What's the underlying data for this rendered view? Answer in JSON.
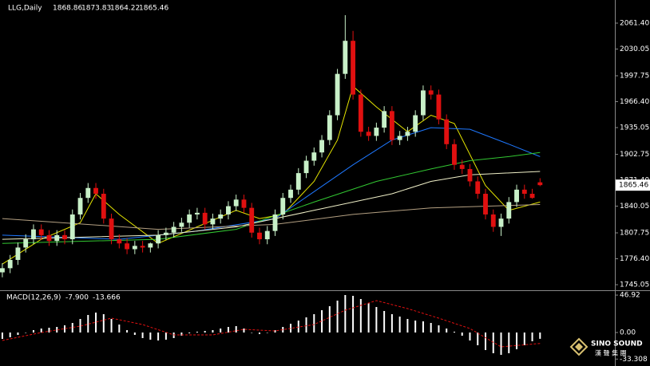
{
  "chart_data": [
    {
      "type": "candlestick",
      "title": "LLG,Daily",
      "up_color": "#c8f0c8",
      "down_color": "#e01010",
      "open": [
        1760,
        1765,
        1775,
        1790,
        1800,
        1812,
        1805,
        1798,
        1805,
        1800,
        1830,
        1850,
        1862,
        1855,
        1825,
        1800,
        1795,
        1788,
        1792,
        1790,
        1795,
        1805,
        1808,
        1815,
        1820,
        1830,
        1832,
        1818,
        1825,
        1830,
        1840,
        1848,
        1838,
        1808,
        1800,
        1810,
        1830,
        1850,
        1860,
        1880,
        1895,
        1905,
        1920,
        1950,
        2000,
        2040,
        1975,
        1930,
        1925,
        1935,
        1955,
        1920,
        1925,
        1930,
        1950,
        1980,
        1975,
        1945,
        1915,
        1890,
        1885,
        1870,
        1855,
        1830,
        1815,
        1825,
        1845,
        1860,
        1855,
        1868.86
      ],
      "high": [
        1771,
        1781,
        1796,
        1806,
        1818,
        1818,
        1811,
        1811,
        1811,
        1836,
        1856,
        1868,
        1868,
        1861,
        1831,
        1806,
        1801,
        1798,
        1798,
        1796,
        1811,
        1814,
        1821,
        1826,
        1836,
        1838,
        1838,
        1831,
        1836,
        1846,
        1854,
        1854,
        1844,
        1814,
        1816,
        1836,
        1856,
        1866,
        1886,
        1901,
        1911,
        1926,
        1956,
        2006,
        2071,
        2052,
        1981,
        1936,
        1941,
        1961,
        1961,
        1931,
        1936,
        1956,
        1986,
        1986,
        1981,
        1951,
        1921,
        1896,
        1891,
        1876,
        1861,
        1836,
        1831,
        1851,
        1866,
        1866,
        1861,
        1873.83
      ],
      "low": [
        1754,
        1759,
        1769,
        1784,
        1794,
        1799,
        1792,
        1792,
        1794,
        1794,
        1824,
        1844,
        1849,
        1819,
        1794,
        1789,
        1782,
        1782,
        1784,
        1784,
        1789,
        1799,
        1802,
        1809,
        1814,
        1824,
        1812,
        1812,
        1819,
        1824,
        1834,
        1832,
        1802,
        1794,
        1794,
        1804,
        1824,
        1844,
        1854,
        1874,
        1889,
        1899,
        1914,
        1944,
        1994,
        1969,
        1924,
        1919,
        1919,
        1929,
        1914,
        1914,
        1919,
        1924,
        1944,
        1969,
        1939,
        1909,
        1884,
        1879,
        1864,
        1849,
        1824,
        1809,
        1804,
        1819,
        1839,
        1849,
        1849,
        1864.22
      ],
      "close": [
        1765,
        1775,
        1790,
        1800,
        1812,
        1805,
        1798,
        1805,
        1800,
        1830,
        1850,
        1862,
        1855,
        1825,
        1800,
        1795,
        1788,
        1792,
        1790,
        1795,
        1805,
        1808,
        1815,
        1820,
        1830,
        1832,
        1818,
        1825,
        1830,
        1840,
        1848,
        1838,
        1808,
        1800,
        1810,
        1830,
        1850,
        1860,
        1880,
        1895,
        1905,
        1920,
        1950,
        2000,
        2040,
        1975,
        1930,
        1925,
        1935,
        1955,
        1920,
        1925,
        1930,
        1950,
        1980,
        1975,
        1945,
        1915,
        1890,
        1885,
        1870,
        1855,
        1830,
        1815,
        1825,
        1845,
        1860,
        1855,
        1850,
        1865.46
      ],
      "overlays": [
        {
          "color": "#e6e600",
          "x": [
            0,
            5,
            10,
            12,
            15,
            20,
            25,
            30,
            33,
            36,
            40,
            43,
            45,
            48,
            52,
            55,
            58,
            62,
            65,
            69
          ],
          "values": [
            1770,
            1800,
            1820,
            1855,
            1830,
            1795,
            1815,
            1835,
            1825,
            1830,
            1870,
            1920,
            1985,
            1960,
            1930,
            1950,
            1940,
            1865,
            1835,
            1845
          ]
        },
        {
          "color": "#1e78ff",
          "x": [
            0,
            15,
            25,
            35,
            45,
            50,
            55,
            60,
            65,
            69
          ],
          "values": [
            1805,
            1800,
            1810,
            1825,
            1890,
            1920,
            1935,
            1933,
            1915,
            1900
          ]
        },
        {
          "color": "#32c832",
          "x": [
            0,
            20,
            30,
            40,
            48,
            55,
            60,
            65,
            69
          ],
          "values": [
            1795,
            1800,
            1812,
            1845,
            1870,
            1885,
            1895,
            1900,
            1905
          ]
        },
        {
          "color": "#f0f0c8",
          "x": [
            0,
            20,
            30,
            40,
            50,
            55,
            60,
            69
          ],
          "values": [
            1800,
            1805,
            1815,
            1835,
            1855,
            1870,
            1878,
            1882
          ]
        },
        {
          "color": "#b4a082",
          "x": [
            0,
            20,
            35,
            45,
            55,
            62,
            69
          ],
          "values": [
            1825,
            1812,
            1818,
            1830,
            1838,
            1840,
            1842
          ]
        }
      ],
      "xlim": [
        -0.3,
        78.6
      ],
      "ylim": [
        1739.3,
        2085.5
      ],
      "yticks": [
        {
          "value": 2061.4,
          "label": "2061.40"
        },
        2030.05,
        1997.75,
        {
          "value": 1966.4,
          "label": "1966.40"
        },
        1935.05,
        1902.75,
        {
          "value": 1871.4,
          "label": "1871.40"
        },
        1840.05,
        1807.75,
        {
          "value": 1776.4,
          "label": "1776.40"
        },
        1745.05
      ]
    },
    {
      "type": "macd",
      "title": "MACD(12,26,9)",
      "title_values": [
        "-7.900",
        "-13.666"
      ],
      "histogram_color": "#ffffff",
      "histogram": [
        -8,
        -6,
        -3,
        0,
        3,
        5,
        6,
        7,
        9,
        12,
        17,
        22,
        25,
        23,
        17,
        10,
        3,
        -3,
        -7,
        -9,
        -10,
        -9,
        -7,
        -4,
        -1,
        1,
        2,
        3,
        5,
        7,
        8,
        5,
        0,
        -2,
        0,
        3,
        7,
        11,
        15,
        19,
        23,
        28,
        33,
        40,
        47,
        46,
        42,
        37,
        32,
        27,
        23,
        20,
        17,
        15,
        14,
        12,
        9,
        5,
        1,
        -4,
        -10,
        -16,
        -22,
        -26,
        -28,
        -26,
        -21,
        -16,
        -11,
        -7.9
      ],
      "signal": {
        "color": "#e01010",
        "x": [
          0,
          5,
          10,
          14,
          18,
          22,
          27,
          31,
          35,
          40,
          44,
          48,
          52,
          56,
          60,
          64,
          69
        ],
        "values": [
          -10,
          0,
          8,
          18,
          10,
          -3,
          -3,
          4,
          2,
          10,
          28,
          40,
          30,
          18,
          5,
          -18,
          -13.666
        ]
      },
      "xlim": [
        -0.3,
        78.6
      ],
      "ylim": [
        -40,
        51
      ],
      "yticks": [
        46.92,
        {
          "value": 0,
          "label": "0.00"
        },
        -33.308
      ]
    }
  ],
  "watermark": {
    "name": "SINO SOUND",
    "chinese": "漢 聲 集 團"
  }
}
